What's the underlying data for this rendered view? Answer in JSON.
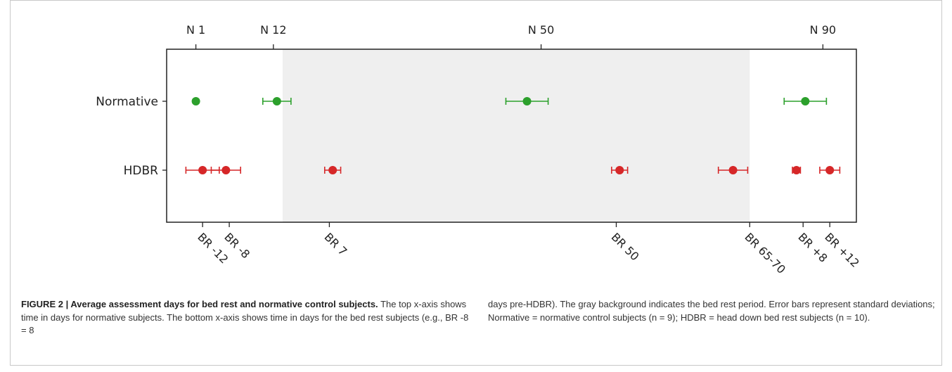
{
  "chart_data": {
    "type": "scatter",
    "top_axis": {
      "ticks": [
        {
          "label": "N 1",
          "value": 1
        },
        {
          "label": "N 12",
          "value": 12
        },
        {
          "label": "N 50",
          "value": 50
        },
        {
          "label": "N 90",
          "value": 90
        }
      ]
    },
    "bottom_axis": {
      "ticks": [
        {
          "label": "BR -12",
          "value": -12
        },
        {
          "label": "BR -8",
          "value": -8
        },
        {
          "label": "BR 7",
          "value": 7
        },
        {
          "label": "BR 50",
          "value": 50
        },
        {
          "label": "BR 65-70",
          "value": 70
        },
        {
          "label": "BR +8",
          "value": 78
        },
        {
          "label": "BR +12",
          "value": 82
        }
      ]
    },
    "categories": [
      "Normative",
      "HDBR"
    ],
    "shaded_region": {
      "from_br": 0,
      "to_br": 70,
      "color": "#efefef",
      "meaning": "bed rest period"
    },
    "series": [
      {
        "name": "Normative",
        "color": "#2ca02c",
        "points": [
          {
            "x_normative_day": 1,
            "sd": 0
          },
          {
            "x_normative_day": 12.5,
            "sd": 2
          },
          {
            "x_normative_day": 48,
            "sd": 3
          },
          {
            "x_normative_day": 87.5,
            "sd": 3
          }
        ]
      },
      {
        "name": "HDBR",
        "color": "#d62728",
        "points": [
          {
            "x_br_day": -12,
            "sd": 2.5
          },
          {
            "x_br_day": -8.5,
            "sd": 2.2
          },
          {
            "x_br_day": 7.5,
            "sd": 1.2
          },
          {
            "x_br_day": 50.5,
            "sd": 1.2
          },
          {
            "x_br_day": 67.5,
            "sd": 2.2
          },
          {
            "x_br_day": 77,
            "sd": 0.6
          },
          {
            "x_br_day": 82,
            "sd": 1.5
          }
        ]
      }
    ]
  },
  "caption": {
    "label": "FIGURE 2 | Average assessment days for bed rest and normative control subjects.",
    "text_left_1": "The top x-axis shows time in days for normative subjects. The bottom x-axis shows time in days for the bed rest subjects (e.g., BR -8 = 8",
    "text_right": "days pre-HDBR). The gray background indicates the bed rest period. Error bars represent standard deviations; Normative = normative control subjects (n = 9); HDBR = head down bed rest subjects (n = 10)."
  }
}
